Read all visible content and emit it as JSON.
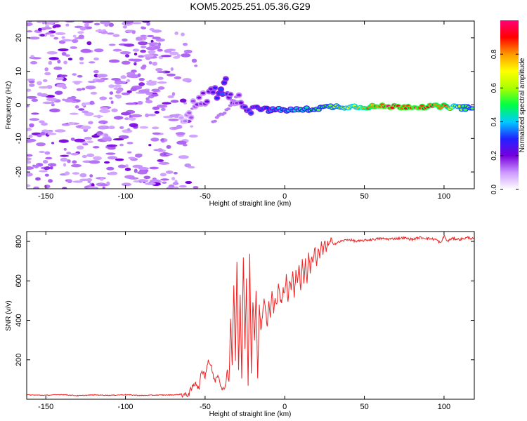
{
  "title": "KOM5.2025.251.05.36.G29",
  "chart_data": [
    {
      "type": "heatmap",
      "name": "spectrogram",
      "xlabel": "Height of straight line (km)",
      "ylabel": "Frequency (Hz)",
      "xlim": [
        -162,
        119
      ],
      "ylim": [
        -25,
        25
      ],
      "xticks": [
        -150,
        -100,
        -50,
        0,
        50,
        100
      ],
      "xtick_labels": [
        "-150",
        "-100",
        "-50",
        "0",
        "50",
        "100"
      ],
      "yticks": [
        -20,
        -10,
        0,
        10,
        20
      ],
      "ytick_labels": [
        "-20",
        "-10",
        "0",
        "10",
        "20"
      ],
      "trace": {
        "x": [
          -65,
          -60,
          -55,
          -50,
          -45,
          -40,
          -37,
          -34,
          -30,
          -25,
          -20,
          -10,
          0,
          10,
          20,
          30,
          40,
          50,
          60,
          70,
          80,
          90,
          100,
          110,
          119
        ],
        "frequency": [
          -4,
          -2,
          0,
          2,
          3.5,
          5,
          5.5,
          4,
          1,
          0,
          -0.5,
          -1.5,
          -1.5,
          -1.5,
          -1,
          -0.5,
          -0.5,
          -0.5,
          -0.5,
          -0.5,
          -0.5,
          -0.5,
          -0.5,
          -0.8,
          -1
        ],
        "amplitude": [
          0.1,
          0.14,
          0.18,
          0.2,
          0.26,
          0.34,
          0.3,
          0.22,
          0.18,
          0.28,
          0.3,
          0.36,
          0.42,
          0.44,
          0.52,
          0.6,
          0.7,
          0.82,
          0.97,
          0.97,
          0.95,
          0.93,
          0.9,
          0.62,
          0.55
        ]
      },
      "colorbar": {
        "label": "Normalized spectral amplitude",
        "range": [
          0,
          1
        ],
        "ticks": [
          0.0,
          0.2,
          0.4,
          0.6,
          0.8
        ],
        "tick_labels": [
          "0.0",
          "0.2",
          "0.4",
          "0.6",
          "0.8"
        ],
        "colors": [
          "#ffffff",
          "#cc99ff",
          "#7700dd",
          "#2222ff",
          "#00ccff",
          "#00ff44",
          "#aaff00",
          "#ffff00",
          "#ff9900",
          "#ff0000",
          "#ff0077"
        ]
      }
    },
    {
      "type": "line",
      "name": "snr",
      "xlabel": "Height of straight line (km)",
      "ylabel": "SNR (v/v)",
      "xlim": [
        -162,
        119
      ],
      "ylim": [
        0,
        850
      ],
      "xticks": [
        -150,
        -100,
        -50,
        0,
        50,
        100
      ],
      "xtick_labels": [
        "-150",
        "-100",
        "-50",
        "0",
        "50",
        "100"
      ],
      "yticks": [
        200,
        400,
        600,
        800
      ],
      "ytick_labels": [
        "200",
        "400",
        "600",
        "800"
      ],
      "series": [
        {
          "name": "SNR",
          "color": "#ee2222",
          "x": [
            -162,
            -150,
            -140,
            -130,
            -120,
            -110,
            -100,
            -90,
            -80,
            -70,
            -65,
            -62,
            -60,
            -58,
            -56,
            -54,
            -52,
            -50,
            -48,
            -46,
            -44,
            -42,
            -40,
            -38,
            -36,
            -35,
            -34,
            -33,
            -32,
            -31,
            -30,
            -29,
            -28,
            -27,
            -26,
            -25,
            -24,
            -23,
            -22,
            -21,
            -20,
            -19,
            -18,
            -17,
            -16,
            -15,
            -14,
            -13,
            -12,
            -11,
            -10,
            -9,
            -8,
            -7,
            -6,
            -5,
            -4,
            -3,
            -2,
            -1,
            0,
            1,
            2,
            3,
            4,
            5,
            6,
            7,
            8,
            9,
            10,
            11,
            12,
            13,
            14,
            15,
            16,
            17,
            18,
            19,
            20,
            21,
            22,
            23,
            24,
            25,
            26,
            27,
            28,
            29,
            30,
            32,
            35,
            40,
            45,
            50,
            55,
            60,
            65,
            70,
            75,
            80,
            85,
            90,
            95,
            98,
            100,
            102,
            105,
            110,
            115,
            119
          ],
          "values": [
            22,
            20,
            24,
            18,
            22,
            20,
            23,
            19,
            21,
            22,
            25,
            20,
            30,
            60,
            90,
            50,
            150,
            120,
            200,
            160,
            90,
            130,
            70,
            40,
            150,
            80,
            420,
            160,
            580,
            200,
            690,
            150,
            520,
            120,
            730,
            260,
            600,
            60,
            730,
            140,
            500,
            300,
            560,
            100,
            470,
            350,
            430,
            510,
            460,
            360,
            500,
            420,
            560,
            440,
            510,
            470,
            590,
            520,
            480,
            560,
            540,
            620,
            500,
            590,
            560,
            660,
            520,
            640,
            600,
            690,
            540,
            700,
            600,
            710,
            580,
            750,
            650,
            720,
            700,
            780,
            680,
            760,
            720,
            790,
            740,
            800,
            760,
            790,
            780,
            810,
            790,
            790,
            800,
            810,
            800,
            805,
            810,
            815,
            812,
            815,
            818,
            810,
            820,
            815,
            810,
            790,
            830,
            800,
            815,
            810,
            820,
            812
          ]
        }
      ]
    }
  ]
}
